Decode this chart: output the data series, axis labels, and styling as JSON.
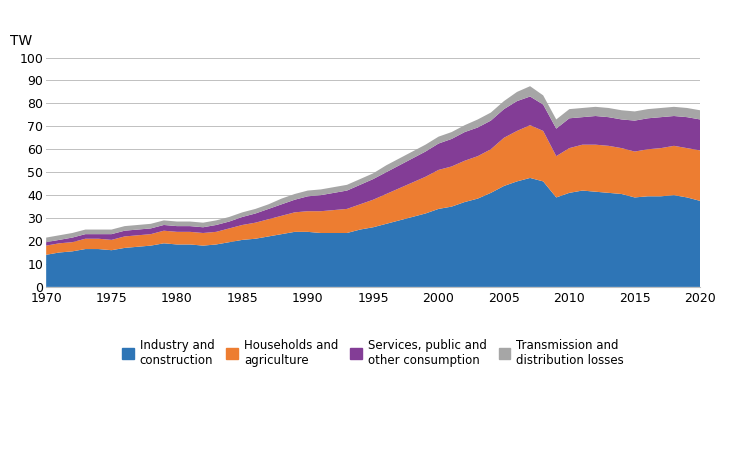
{
  "years": [
    1970,
    1971,
    1972,
    1973,
    1974,
    1975,
    1976,
    1977,
    1978,
    1979,
    1980,
    1981,
    1982,
    1983,
    1984,
    1985,
    1986,
    1987,
    1988,
    1989,
    1990,
    1991,
    1992,
    1993,
    1994,
    1995,
    1996,
    1997,
    1998,
    1999,
    2000,
    2001,
    2002,
    2003,
    2004,
    2005,
    2006,
    2007,
    2008,
    2009,
    2010,
    2011,
    2012,
    2013,
    2014,
    2015,
    2016,
    2017,
    2018,
    2019,
    2020
  ],
  "industry": [
    14.0,
    15.0,
    15.5,
    16.5,
    16.5,
    16.0,
    17.0,
    17.5,
    18.0,
    19.0,
    18.5,
    18.5,
    18.0,
    18.5,
    19.5,
    20.5,
    21.0,
    22.0,
    23.0,
    24.0,
    24.0,
    23.5,
    23.5,
    23.5,
    25.0,
    26.0,
    27.5,
    29.0,
    30.5,
    32.0,
    34.0,
    35.0,
    37.0,
    38.5,
    41.0,
    44.0,
    46.0,
    47.5,
    46.0,
    39.0,
    41.0,
    42.0,
    41.5,
    41.0,
    40.5,
    39.0,
    39.5,
    39.5,
    40.0,
    39.0,
    37.5
  ],
  "households": [
    4.0,
    4.0,
    4.0,
    4.5,
    4.5,
    4.5,
    5.0,
    5.0,
    5.0,
    5.5,
    5.5,
    5.5,
    5.5,
    5.5,
    6.0,
    6.5,
    7.0,
    7.5,
    8.0,
    8.5,
    9.0,
    9.5,
    10.0,
    10.5,
    11.0,
    12.0,
    13.0,
    14.0,
    15.0,
    16.0,
    17.0,
    17.5,
    18.0,
    18.5,
    19.0,
    21.0,
    22.0,
    23.0,
    22.0,
    18.0,
    19.5,
    20.0,
    20.5,
    20.5,
    20.0,
    20.0,
    20.5,
    21.0,
    21.5,
    21.5,
    22.0
  ],
  "services": [
    1.5,
    1.5,
    2.0,
    2.0,
    2.0,
    2.5,
    2.5,
    2.5,
    2.5,
    2.5,
    2.5,
    2.5,
    2.5,
    3.0,
    3.0,
    3.5,
    4.0,
    4.5,
    5.0,
    5.5,
    6.5,
    7.0,
    7.5,
    8.0,
    8.5,
    9.0,
    9.5,
    10.0,
    10.5,
    11.0,
    11.5,
    12.0,
    12.5,
    12.5,
    12.5,
    12.5,
    13.0,
    12.5,
    11.5,
    12.0,
    13.0,
    12.0,
    12.5,
    12.5,
    12.5,
    13.5,
    13.5,
    13.5,
    13.0,
    13.5,
    13.5
  ],
  "transmission": [
    2.0,
    2.0,
    2.0,
    2.0,
    2.0,
    2.0,
    2.0,
    2.0,
    2.0,
    2.0,
    2.0,
    2.0,
    2.0,
    2.0,
    2.0,
    2.0,
    2.0,
    2.0,
    2.5,
    2.5,
    2.5,
    2.5,
    2.5,
    2.5,
    2.5,
    2.5,
    3.0,
    3.0,
    3.0,
    3.0,
    3.0,
    3.0,
    3.0,
    3.5,
    3.5,
    3.5,
    4.0,
    4.5,
    4.0,
    4.0,
    4.0,
    4.0,
    4.0,
    4.0,
    4.0,
    4.0,
    4.0,
    4.0,
    4.0,
    4.0,
    4.0
  ],
  "colors": {
    "industry": "#2e75b6",
    "households": "#ed7d31",
    "services": "#833d96",
    "transmission": "#a6a6a6"
  },
  "ylabel": "TW",
  "ylim": [
    0,
    100
  ],
  "yticks": [
    0,
    10,
    20,
    30,
    40,
    50,
    60,
    70,
    80,
    90,
    100
  ],
  "xlim": [
    1970,
    2020
  ],
  "xticks": [
    1970,
    1975,
    1980,
    1985,
    1990,
    1995,
    2000,
    2005,
    2010,
    2015,
    2020
  ],
  "legend_labels": [
    "Industry and\nconstruction",
    "Households and\nagriculture",
    "Services, public and\nother consumption",
    "Transmission and\ndistribution losses"
  ]
}
